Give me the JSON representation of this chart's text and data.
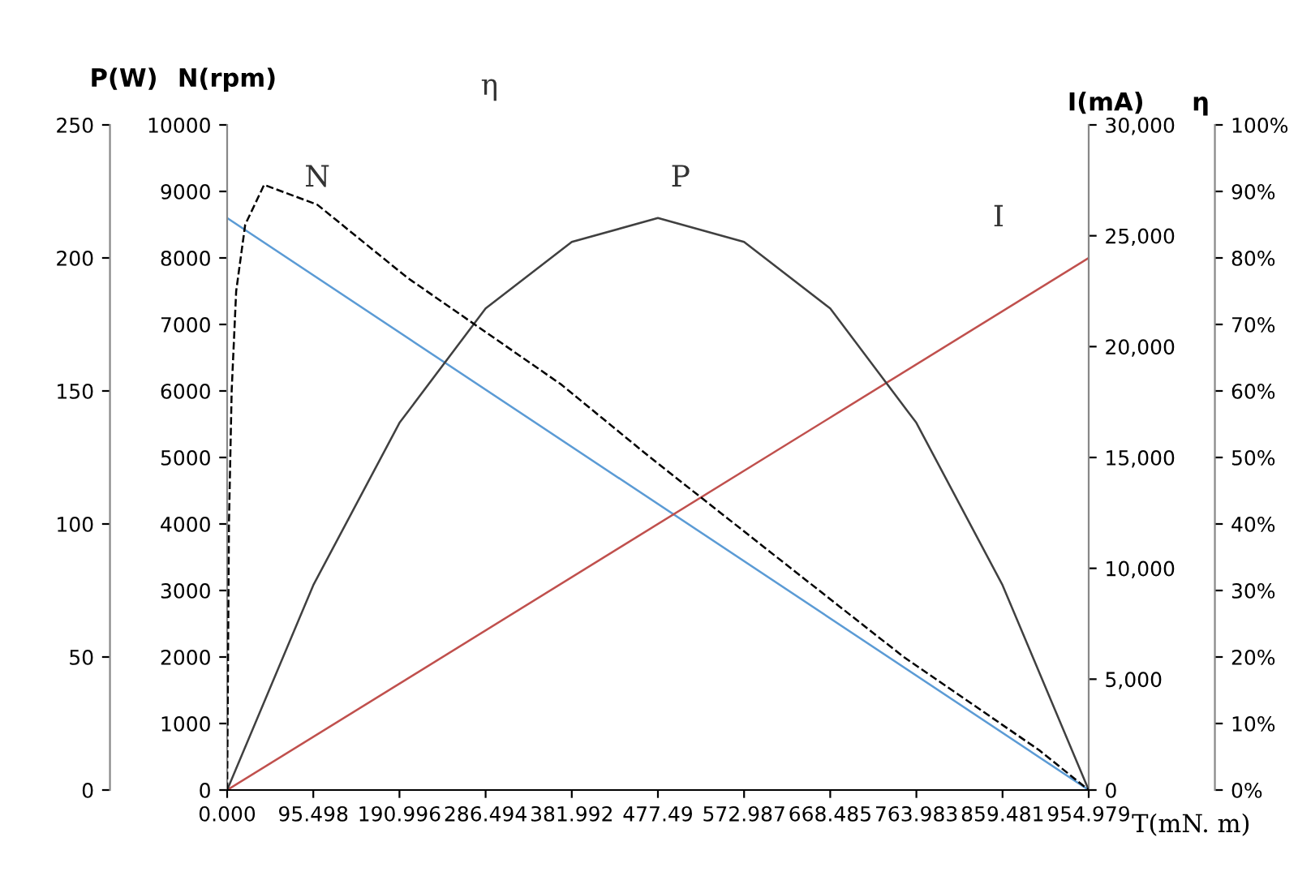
{
  "chart_data": [
    {
      "type": "line",
      "xlabel": "T(mN. m)",
      "ylabel": "N(rpm)",
      "y2label": "I(mA)",
      "y3label": "P(W)",
      "xlim": [
        0,
        954.979
      ],
      "xticks": [
        {
          "value": 0,
          "label": "0.000"
        },
        95.498,
        190.996,
        286.494,
        381.992,
        477.49,
        572.987,
        668.485,
        763.983,
        859.481,
        954.979
      ],
      "ylim": [
        0,
        10000
      ],
      "yticks": [
        0,
        1000,
        2000,
        3000,
        4000,
        5000,
        6000,
        7000,
        8000,
        9000,
        10000
      ],
      "y2lim": [
        0,
        30000
      ],
      "y2ticks": [
        0,
        {
          "value": 5000,
          "label": "5,000"
        },
        {
          "value": 10000,
          "label": "10,000"
        },
        {
          "value": 15000,
          "label": "15,000"
        },
        {
          "value": 20000,
          "label": "20,000"
        },
        {
          "value": 25000,
          "label": "25,000"
        },
        {
          "value": 30000,
          "label": "30,000"
        }
      ],
      "y3lim": [
        0,
        250
      ],
      "y3ticks": [
        0,
        50,
        100,
        150,
        200,
        250
      ],
      "grid": false,
      "legend": false,
      "marker": "none",
      "series": [
        {
          "name": "N",
          "color": "#5b9bd5",
          "axis": "y",
          "line_style": "solid",
          "x": [
            0,
            954.979
          ],
          "values": [
            8600,
            0
          ]
        },
        {
          "name": "P",
          "color": "#404040",
          "axis": "y3",
          "line_style": "solid",
          "x": [
            0,
            95.498,
            190.996,
            286.494,
            381.992,
            477.49,
            572.987,
            668.485,
            763.983,
            859.481,
            954.979
          ],
          "values": [
            0,
            77,
            138,
            181,
            206,
            215,
            206,
            181,
            138,
            77,
            0
          ]
        },
        {
          "name": "I",
          "color": "#c0504d",
          "axis": "y2",
          "line_style": "solid",
          "x": [
            0,
            954.979
          ],
          "values": [
            0,
            24000
          ]
        }
      ]
    },
    {
      "type": "line",
      "ylabel": "η",
      "tick_labels": "y",
      "xlim": [
        0,
        954.979
      ],
      "ylim": [
        0,
        100
      ],
      "yticks": [
        {
          "value": 0,
          "label": "0%"
        },
        {
          "value": 10,
          "label": "10%"
        },
        {
          "value": 20,
          "label": "20%"
        },
        {
          "value": 30,
          "label": "30%"
        },
        {
          "value": 40,
          "label": "40%"
        },
        {
          "value": 50,
          "label": "50%"
        },
        {
          "value": 60,
          "label": "60%"
        },
        {
          "value": 70,
          "label": "70%"
        },
        {
          "value": 80,
          "label": "80%"
        },
        {
          "value": 90,
          "label": "90%"
        },
        {
          "value": 100,
          "label": "100%"
        }
      ],
      "grid": false,
      "legend": false,
      "marker": "none",
      "series": [
        {
          "name": "η",
          "color": "#000000",
          "line_style": "dashed",
          "x": [
            0,
            2,
            5,
            10,
            20,
            41,
            100,
            200,
            370,
            469,
            600,
            750,
            900,
            954.979
          ],
          "values": [
            0,
            40,
            60,
            75,
            85,
            91,
            88,
            77,
            61,
            50,
            36,
            20,
            6,
            0
          ]
        }
      ]
    }
  ]
}
